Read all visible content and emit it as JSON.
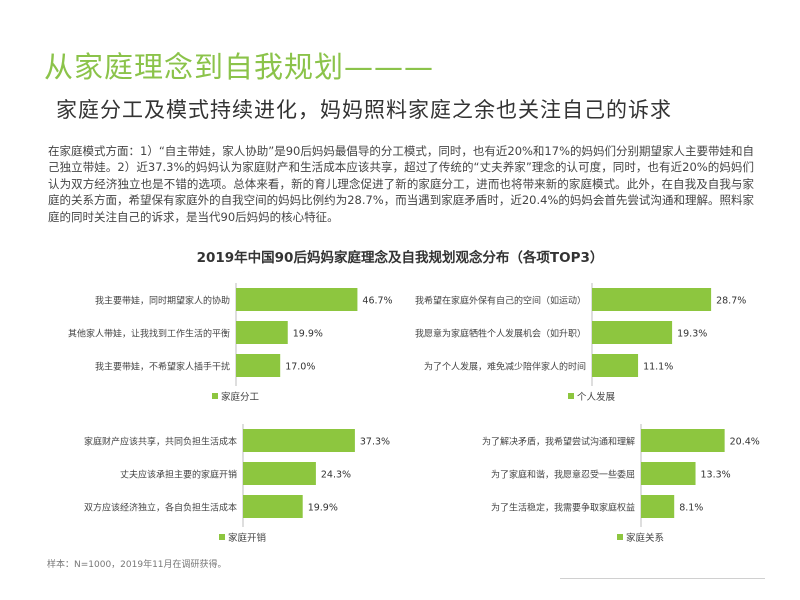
{
  "header": {
    "title": "从家庭理念到自我规划———",
    "subtitle": "家庭分工及模式持续进化，妈妈照料家庭之余也关注自己的诉求"
  },
  "body_text": "在家庭模式方面：1）“自主带娃，家人协助”是90后妈妈最倡导的分工模式，同时，也有近20%和17%的妈妈们分别期望家人主要带娃和自己独立带娃。2）近37.3%的妈妈认为家庭财产和生活成本应该共享，超过了传统的“丈夫养家”理念的认可度，同时，也有近20%的妈妈们认为双方经济独立也是不错的选项。总体来看，新的育儿理念促进了新的家庭分工，进而也将带来新的家庭模式。此外，在自我及自我与家庭的关系方面，希望保有家庭外的自我空间的妈妈比例约为28.7%，而当遇到家庭矛盾时，近20.4%的妈妈会首先尝试沟通和理解。照料家庭的同时关注自己的诉求，是当代90后妈妈的核心特征。",
  "chart_title": "2019年中国90后妈妈家庭理念及自我规划观念分布（各项TOP3）",
  "footnote": "样本：N=1000，2019年11月在调研获得。",
  "colors": {
    "bar": "#8dc63f",
    "title": "#8bc34a"
  },
  "chart_data": [
    {
      "type": "bar",
      "orientation": "horizontal",
      "legend": "家庭分工",
      "categories": [
        "我主要带娃，同时期望家人的协助",
        "其他家人带娃，让我找到工作生活的平衡",
        "我主要带娃，不希望家人插手干扰"
      ],
      "values": [
        46.7,
        19.9,
        17.0
      ],
      "labels": [
        "46.7%",
        "19.9%",
        "17.0%"
      ]
    },
    {
      "type": "bar",
      "orientation": "horizontal",
      "legend": "个人发展",
      "categories": [
        "我希望在家庭外保有自己的空间（如运动）",
        "我愿意为家庭牺牲个人发展机会（如升职）",
        "为了个人发展，难免减少陪伴家人的时间"
      ],
      "values": [
        28.7,
        19.3,
        11.1
      ],
      "labels": [
        "28.7%",
        "19.3%",
        "11.1%"
      ]
    },
    {
      "type": "bar",
      "orientation": "horizontal",
      "legend": "家庭开销",
      "categories": [
        "家庭财产应该共享，共同负担生活成本",
        "丈夫应该承担主要的家庭开销",
        "双方应该经济独立，各自负担生活成本"
      ],
      "values": [
        37.3,
        24.3,
        19.9
      ],
      "labels": [
        "37.3%",
        "24.3%",
        "19.9%"
      ]
    },
    {
      "type": "bar",
      "orientation": "horizontal",
      "legend": "家庭关系",
      "categories": [
        "为了解决矛盾，我希望尝试沟通和理解",
        "为了家庭和谐，我愿意忍受一些委屈",
        "为了生活稳定，我需要争取家庭权益"
      ],
      "values": [
        20.4,
        13.3,
        8.1
      ],
      "labels": [
        "20.4%",
        "13.3%",
        "8.1%"
      ]
    }
  ]
}
